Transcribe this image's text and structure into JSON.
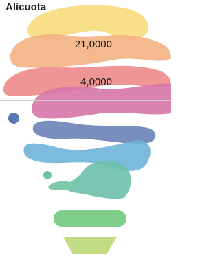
{
  "header": {
    "title": "Alícuota"
  },
  "table": {
    "rows": [
      "21,0000",
      "4,0000"
    ]
  }
}
